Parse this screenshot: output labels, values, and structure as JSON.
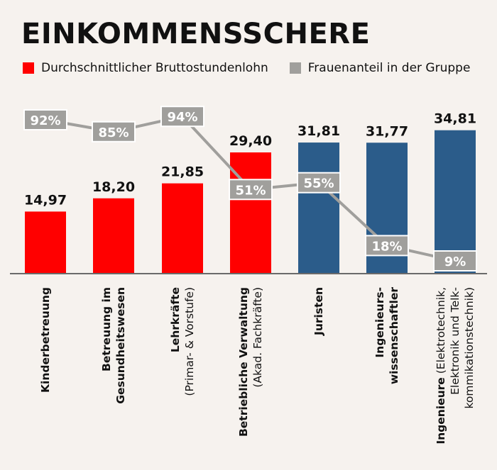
{
  "title": "EINKOMMENSSCHERE",
  "legend": {
    "wage_label": "Durchschnittlicher Bruttostundenlohn",
    "women_label": "Frauenanteil in der Gruppe"
  },
  "colors": {
    "red": "#ff0000",
    "blue": "#2b5c8a",
    "gray": "#a09f9c",
    "background": "#f6f2ee"
  },
  "chart_data": {
    "type": "bar",
    "categories": [
      {
        "lines": [
          {
            "text": "Kinderbetreuung",
            "bold": true
          }
        ]
      },
      {
        "lines": [
          {
            "text": "Betreuung im",
            "bold": true
          },
          {
            "text": "Gesundheitswesen",
            "bold": true
          }
        ]
      },
      {
        "lines": [
          {
            "text": "Lehrkräfte",
            "bold": true
          },
          {
            "text": "(Primar- & Vorstufe)",
            "bold": false
          }
        ]
      },
      {
        "lines": [
          {
            "text": "Betriebliche Verwaltung",
            "bold": true
          },
          {
            "text": "(Akad. Fachkräfte)",
            "bold": false
          }
        ]
      },
      {
        "lines": [
          {
            "text": "Juristen",
            "bold": true
          }
        ]
      },
      {
        "lines": [
          {
            "text": "Ingenieurs-",
            "bold": true
          },
          {
            "text": "wissenschaftler",
            "bold": true
          }
        ]
      },
      {
        "lines": [
          [
            {
              "text": "Ingenieure",
              "bold": true
            },
            {
              "text": " (Elektrotechnik,",
              "bold": false
            }
          ],
          [
            {
              "text": "Elektronik und Telk-",
              "bold": false
            }
          ],
          [
            {
              "text": "kommikationstechnik)",
              "bold": false
            }
          ]
        ]
      }
    ],
    "series": [
      {
        "name": "Durchschnittlicher Bruttostundenlohn",
        "kind": "bar",
        "values": [
          14.97,
          18.2,
          21.85,
          29.4,
          31.81,
          31.77,
          34.81
        ],
        "labels": [
          "14,97",
          "18,20",
          "21,85",
          "29,40",
          "31,81",
          "31,77",
          "34,81"
        ],
        "bar_colors": [
          "#ff0000",
          "#ff0000",
          "#ff0000",
          "#ff0000",
          "#2b5c8a",
          "#2b5c8a",
          "#2b5c8a"
        ]
      },
      {
        "name": "Frauenanteil in der Gruppe",
        "kind": "line",
        "values": [
          92,
          85,
          94,
          51,
          55,
          18,
          9
        ],
        "labels": [
          "92%",
          "85%",
          "94%",
          "51%",
          "55%",
          "18%",
          "9%"
        ]
      }
    ],
    "wage_axis": [
      0,
      36
    ],
    "share_axis": [
      0,
      100
    ],
    "grid": false,
    "legend_position": "top-left"
  }
}
